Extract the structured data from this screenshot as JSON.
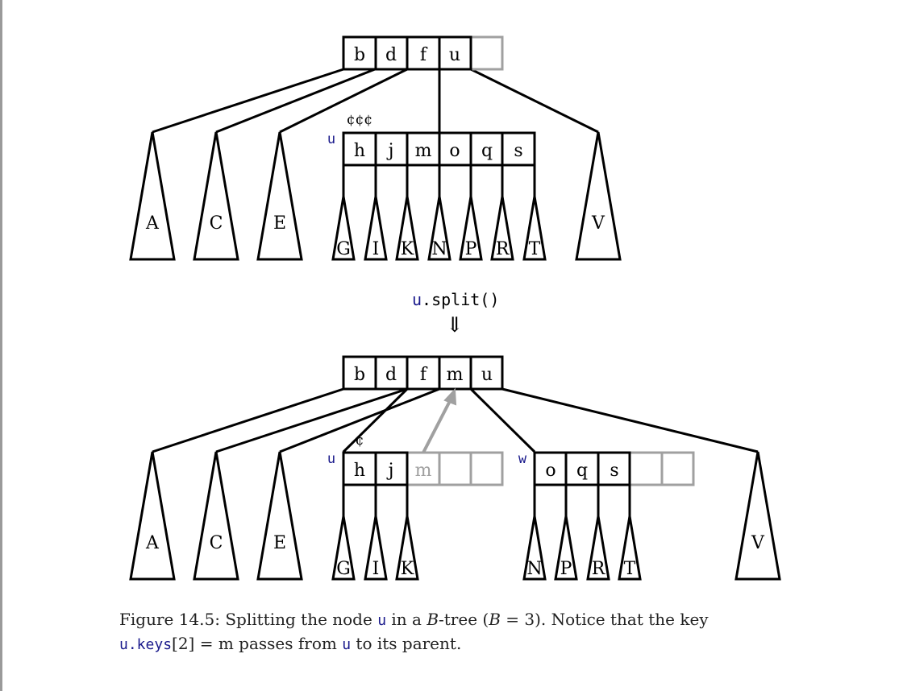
{
  "top": {
    "root_keys": [
      "b",
      "d",
      "f",
      "u",
      ""
    ],
    "node_label": "u",
    "node_keys": [
      "h",
      "j",
      "m",
      "o",
      "q",
      "s"
    ],
    "left_subtrees": [
      "A",
      "C",
      "E"
    ],
    "node_subtrees": [
      "G",
      "I",
      "K",
      "N",
      "P",
      "R",
      "T"
    ],
    "right_subtree": "V",
    "marks": "¢¢¢"
  },
  "operation": {
    "object": "u",
    "method": ".split()",
    "arrow": "⇓"
  },
  "bottom": {
    "root_keys": [
      "b",
      "d",
      "f",
      "m",
      "u"
    ],
    "left_node_label": "u",
    "left_node_keys": [
      "h",
      "j",
      "m",
      "",
      ""
    ],
    "right_node_label": "w",
    "right_node_keys": [
      "o",
      "q",
      "s",
      "",
      ""
    ],
    "left_subtrees": [
      "A",
      "C",
      "E"
    ],
    "u_subtrees": [
      "G",
      "I",
      "K"
    ],
    "w_subtrees": [
      "N",
      "P",
      "R",
      "T"
    ],
    "right_subtree": "V",
    "marks": "¢"
  },
  "caption": {
    "label": "Figure 14.5:",
    "t1": "Splitting the node",
    "v1": "u",
    "t2": "in a",
    "italic_b": "B",
    "t3": "-tree (",
    "italic_b2": "B",
    "t4": "= 3).   Notice that the key",
    "v2": "u",
    "v3": ".keys",
    "t5": "[2] = m passes from",
    "v4": "u",
    "t6": "to its parent."
  },
  "colors": {
    "ink": "#000000",
    "moved": "#a0a0a0",
    "variable": "#1a1a8c"
  }
}
